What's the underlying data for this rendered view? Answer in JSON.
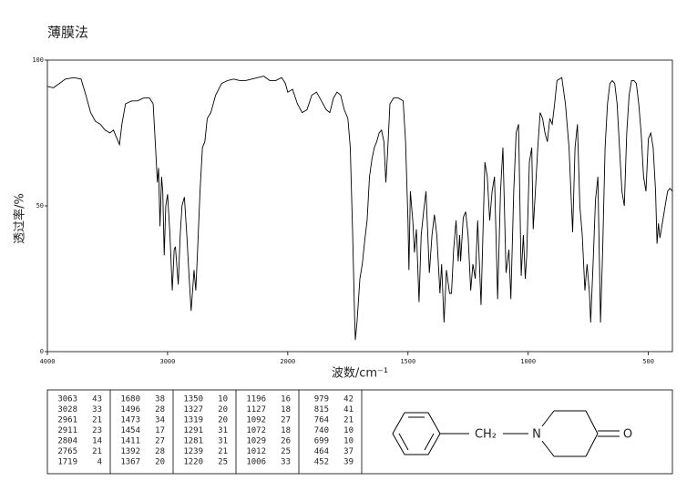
{
  "chart_data": {
    "type": "line",
    "title": "薄膜法",
    "x_label": "波数/cm⁻¹",
    "y_label": "透过率/%",
    "xlim": [
      4000,
      400
    ],
    "ylim": [
      0,
      100
    ],
    "xticks": [
      4000,
      3000,
      2000,
      1500,
      1000,
      500
    ],
    "yticks": [
      0,
      50,
      100
    ],
    "color": "#000000",
    "x": [
      4000,
      3950,
      3900,
      3850,
      3780,
      3720,
      3680,
      3640,
      3600,
      3560,
      3520,
      3480,
      3450,
      3420,
      3400,
      3380,
      3350,
      3300,
      3250,
      3200,
      3150,
      3120,
      3100,
      3085,
      3075,
      3063,
      3050,
      3040,
      3028,
      3015,
      3000,
      2980,
      2961,
      2945,
      2935,
      2911,
      2895,
      2880,
      2860,
      2840,
      2820,
      2804,
      2790,
      2780,
      2765,
      2750,
      2730,
      2710,
      2690,
      2670,
      2640,
      2600,
      2550,
      2500,
      2450,
      2400,
      2350,
      2300,
      2250,
      2200,
      2150,
      2100,
      2050,
      2020,
      2000,
      1980,
      1960,
      1940,
      1920,
      1900,
      1880,
      1860,
      1840,
      1825,
      1810,
      1795,
      1780,
      1765,
      1750,
      1740,
      1730,
      1722,
      1719,
      1712,
      1700,
      1690,
      1680,
      1670,
      1660,
      1650,
      1640,
      1630,
      1620,
      1610,
      1600,
      1592,
      1585,
      1575,
      1560,
      1540,
      1520,
      1510,
      1500,
      1496,
      1490,
      1480,
      1473,
      1465,
      1454,
      1445,
      1435,
      1425,
      1411,
      1400,
      1390,
      1380,
      1367,
      1360,
      1350,
      1340,
      1327,
      1319,
      1310,
      1300,
      1291,
      1285,
      1281,
      1270,
      1260,
      1250,
      1239,
      1230,
      1220,
      1210,
      1196,
      1185,
      1180,
      1170,
      1160,
      1150,
      1140,
      1127,
      1115,
      1105,
      1092,
      1080,
      1072,
      1060,
      1050,
      1040,
      1029,
      1020,
      1012,
      1006,
      995,
      985,
      979,
      970,
      960,
      950,
      940,
      930,
      920,
      910,
      900,
      890,
      880,
      860,
      845,
      830,
      815,
      805,
      795,
      785,
      775,
      764,
      755,
      745,
      740,
      730,
      720,
      710,
      699,
      690,
      680,
      670,
      660,
      650,
      640,
      630,
      620,
      610,
      600,
      590,
      580,
      570,
      560,
      550,
      540,
      530,
      520,
      510,
      500,
      490,
      480,
      470,
      464,
      458,
      452,
      440,
      430,
      420,
      410,
      400
    ],
    "values": [
      91,
      90.5,
      92,
      93.5,
      94,
      93.5,
      88,
      82,
      79,
      78,
      76,
      75,
      76,
      73,
      71,
      78,
      85,
      86,
      86,
      87,
      87,
      85,
      70,
      58,
      63,
      43,
      60,
      55,
      33,
      50,
      54,
      40,
      21,
      35,
      36,
      23,
      40,
      50,
      53,
      40,
      25,
      14,
      22,
      28,
      21,
      35,
      55,
      70,
      72,
      80,
      82,
      88,
      92,
      93,
      93.5,
      93,
      93,
      93.5,
      94,
      94.5,
      93,
      93,
      94,
      92,
      89,
      90,
      85,
      82,
      83,
      88,
      89,
      86,
      83,
      82,
      87,
      89,
      88,
      83,
      80,
      70,
      40,
      12,
      4,
      10,
      25,
      30,
      38,
      45,
      60,
      66,
      70,
      72,
      75,
      76,
      72,
      58,
      68,
      85,
      87,
      87,
      86,
      72,
      45,
      28,
      55,
      45,
      34,
      42,
      17,
      40,
      48,
      55,
      27,
      40,
      47,
      40,
      20,
      30,
      10,
      28,
      20,
      20,
      35,
      45,
      31,
      40,
      31,
      46,
      48,
      40,
      21,
      30,
      25,
      45,
      16,
      50,
      65,
      60,
      45,
      55,
      60,
      18,
      55,
      70,
      27,
      35,
      18,
      55,
      75,
      78,
      26,
      40,
      25,
      33,
      65,
      70,
      42,
      55,
      70,
      82,
      80,
      75,
      72,
      80,
      78,
      85,
      93,
      94,
      85,
      70,
      41,
      70,
      78,
      50,
      40,
      21,
      30,
      20,
      10,
      30,
      52,
      60,
      10,
      35,
      70,
      85,
      92,
      93,
      92,
      85,
      70,
      55,
      50,
      75,
      88,
      93,
      93,
      92,
      85,
      75,
      60,
      55,
      73,
      75,
      70,
      55,
      37,
      44,
      39,
      45,
      50,
      55,
      56,
      55
    ]
  },
  "peak_table": [
    [
      [
        3063,
        43
      ],
      [
        3028,
        33
      ],
      [
        2961,
        21
      ],
      [
        2911,
        23
      ],
      [
        2804,
        14
      ],
      [
        2765,
        21
      ],
      [
        1719,
        4
      ]
    ],
    [
      [
        1680,
        38
      ],
      [
        1496,
        28
      ],
      [
        1473,
        34
      ],
      [
        1454,
        17
      ],
      [
        1411,
        27
      ],
      [
        1392,
        28
      ],
      [
        1367,
        20
      ]
    ],
    [
      [
        1350,
        10
      ],
      [
        1327,
        20
      ],
      [
        1319,
        20
      ],
      [
        1291,
        31
      ],
      [
        1281,
        31
      ],
      [
        1239,
        21
      ],
      [
        1220,
        25
      ]
    ],
    [
      [
        1196,
        16
      ],
      [
        1127,
        18
      ],
      [
        1092,
        27
      ],
      [
        1072,
        18
      ],
      [
        1029,
        26
      ],
      [
        1012,
        25
      ],
      [
        1006,
        33
      ]
    ],
    [
      [
        979,
        42
      ],
      [
        815,
        41
      ],
      [
        764,
        21
      ],
      [
        740,
        10
      ],
      [
        699,
        10
      ],
      [
        464,
        37
      ],
      [
        452,
        39
      ]
    ]
  ],
  "structure": {
    "labels": [
      "CH₂",
      "N",
      "O"
    ]
  }
}
